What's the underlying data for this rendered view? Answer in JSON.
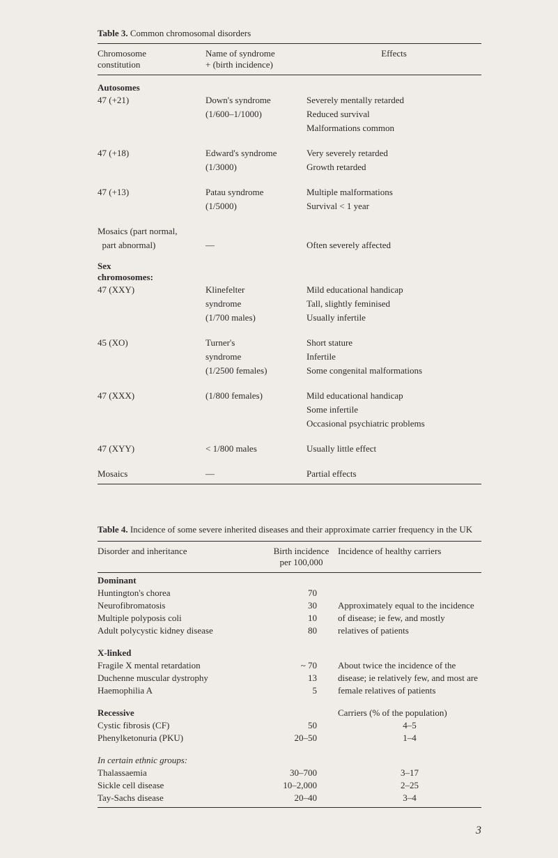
{
  "table3": {
    "title_bold": "Table 3.",
    "title_rest": "Common chromosomal disorders",
    "headers": {
      "c1a": "Chromosome",
      "c1b": "constitution",
      "c2a": "Name of syndrome",
      "c2b": "+ (birth incidence)",
      "c3": "Effects"
    },
    "section_autosomes": "Autosomes",
    "rows_auto": [
      {
        "c1": "47 (+21)",
        "c2": [
          "Down's syndrome",
          "(1/600–1/1000)"
        ],
        "c3": [
          "Severely mentally retarded",
          "Reduced survival",
          "Malformations common"
        ]
      },
      {
        "c1": "47 (+18)",
        "c2": [
          "Edward's syndrome",
          "(1/3000)"
        ],
        "c3": [
          "Very severely retarded",
          "Growth retarded"
        ]
      },
      {
        "c1": "47 (+13)",
        "c2": [
          "Patau syndrome",
          "(1/5000)"
        ],
        "c3": [
          "Multiple malformations",
          "Survival < 1 year"
        ]
      },
      {
        "c1_lines": [
          "Mosaics (part normal,",
          "  part abnormal)"
        ],
        "c2": [
          "",
          "—"
        ],
        "c3": [
          "",
          "Often severely affected"
        ]
      }
    ],
    "section_sex_a": "Sex",
    "section_sex_b": "chromosomes:",
    "rows_sex": [
      {
        "c1": "47 (XXY)",
        "c2": [
          "Klinefelter",
          "syndrome",
          "(1/700 males)"
        ],
        "c3": [
          "Mild educational handicap",
          "Tall, slightly feminised",
          "Usually infertile"
        ]
      },
      {
        "c1": "45 (XO)",
        "c2": [
          "Turner's",
          "syndrome",
          "(1/2500 females)"
        ],
        "c3": [
          "Short stature",
          "Infertile",
          "Some congenital malformations"
        ]
      },
      {
        "c1": "47 (XXX)",
        "c2": [
          "(1/800 females)"
        ],
        "c3": [
          "Mild educational handicap",
          "Some infertile",
          "Occasional psychiatric problems"
        ]
      },
      {
        "c1": "47 (XYY)",
        "c2": [
          "< 1/800 males"
        ],
        "c3": [
          "Usually little effect"
        ]
      },
      {
        "c1": "Mosaics",
        "c2": [
          "—"
        ],
        "c3": [
          "Partial effects"
        ]
      }
    ]
  },
  "table4": {
    "title_bold": "Table 4.",
    "title_rest": "Incidence of some severe inherited diseases and their approximate carrier frequency in the UK",
    "headers": {
      "c1": "Disorder and inheritance",
      "c2a": "Birth incidence",
      "c2b": "per 100,000",
      "c3": "Incidence of healthy carriers"
    },
    "section_dominant": "Dominant",
    "dominant_rows": [
      {
        "name": "Huntington's chorea",
        "inc": "70"
      },
      {
        "name": "Neurofibromatosis",
        "inc": "30"
      },
      {
        "name": "Multiple polyposis coli",
        "inc": "10"
      },
      {
        "name": "Adult polycystic kidney disease",
        "inc": "80"
      }
    ],
    "dominant_note": [
      "",
      "Approximately equal to the incidence",
      "of disease; ie few, and mostly",
      "relatives of patients"
    ],
    "section_xlinked": "X-linked",
    "xlinked_rows": [
      {
        "name": "Fragile X mental retardation",
        "inc": "~ 70"
      },
      {
        "name": "Duchenne muscular dystrophy",
        "inc": "13"
      },
      {
        "name": "Haemophilia A",
        "inc": "5"
      }
    ],
    "xlinked_note": [
      "About twice the incidence of the",
      "disease; ie relatively few, and most are",
      "female relatives of patients"
    ],
    "section_recessive": "Recessive",
    "recessive_header_note": "Carriers (% of the population)",
    "recessive_rows": [
      {
        "name": "Cystic fibrosis (CF)",
        "inc": "50",
        "car": "4–5"
      },
      {
        "name": "Phenylketonuria (PKU)",
        "inc": "20–50",
        "car": "1–4"
      }
    ],
    "section_ethnic": "In certain ethnic groups:",
    "ethnic_rows": [
      {
        "name": "Thalassaemia",
        "inc": "30–700",
        "car": "3–17"
      },
      {
        "name": "Sickle cell disease",
        "inc": "10–2,000",
        "car": "2–25"
      },
      {
        "name": "Tay-Sachs disease",
        "inc": "20–40",
        "car": "3–4"
      }
    ]
  },
  "page_number": "3"
}
